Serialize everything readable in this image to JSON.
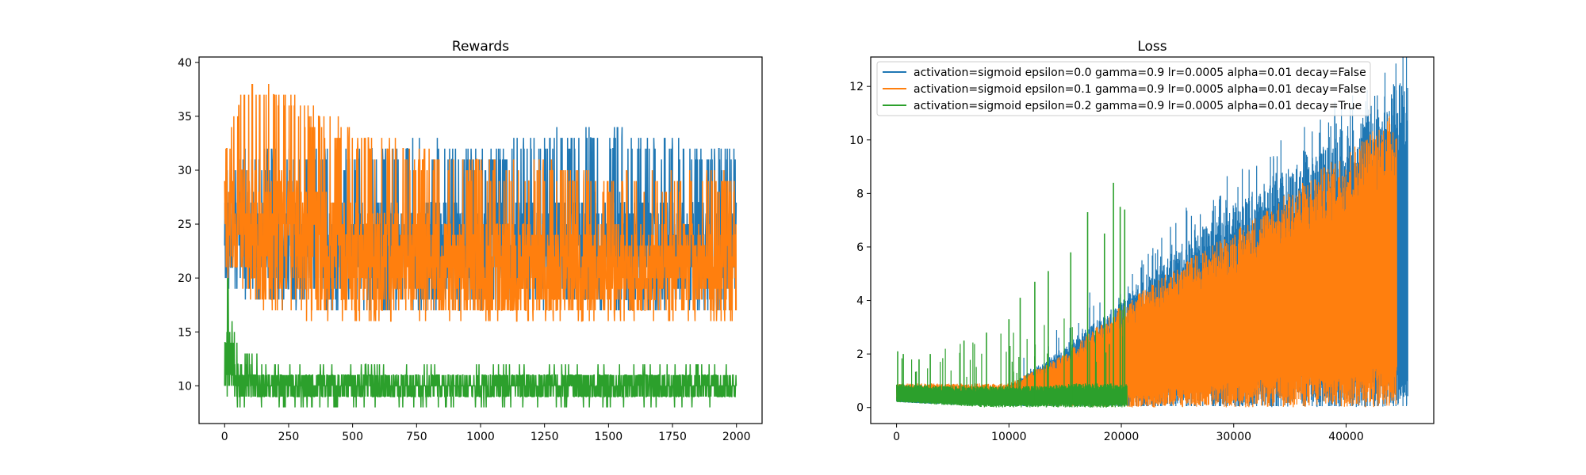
{
  "chart_data": [
    {
      "type": "line",
      "title": "Rewards",
      "xlabel": "",
      "ylabel": "",
      "xlim": [
        -100,
        2100
      ],
      "ylim": [
        6.5,
        40.5
      ],
      "xticks": [
        0,
        250,
        500,
        750,
        1000,
        1250,
        1500,
        1750,
        2000
      ],
      "yticks": [
        10,
        15,
        20,
        25,
        30,
        35,
        40
      ],
      "grid": false,
      "legend": "none",
      "n_points": 2000,
      "series": [
        {
          "color": "#1f77b4",
          "envelope_x": [
            0,
            100,
            250,
            500,
            750,
            1000,
            1250,
            1500,
            1750,
            2000
          ],
          "low": [
            19,
            18,
            17,
            17,
            17,
            17,
            17,
            17,
            17,
            17
          ],
          "high": [
            31,
            32,
            32,
            32,
            33,
            32,
            34,
            34,
            33,
            32
          ],
          "mean": [
            24,
            24,
            23,
            23,
            23,
            23,
            23,
            23,
            23,
            23
          ]
        },
        {
          "color": "#ff7f0e",
          "envelope_x": [
            0,
            100,
            250,
            500,
            750,
            1000,
            1250,
            1500,
            1750,
            2000
          ],
          "low": [
            20,
            18,
            16,
            16,
            16,
            16,
            16,
            16,
            16,
            16
          ],
          "high": [
            33,
            39,
            37,
            34,
            32,
            31,
            31,
            30,
            30,
            30
          ],
          "mean": [
            26,
            25,
            24,
            22,
            22,
            21,
            21,
            21,
            21,
            21
          ]
        },
        {
          "color": "#2ca02c",
          "envelope_x": [
            0,
            50,
            100,
            250,
            500,
            750,
            1000,
            1250,
            1500,
            1750,
            2000
          ],
          "low": [
            9,
            8,
            8,
            8,
            8,
            8,
            8,
            8,
            8,
            8,
            8
          ],
          "high": [
            23,
            15,
            13,
            12,
            12,
            12,
            12,
            12,
            12,
            12,
            12
          ],
          "mean": [
            13,
            10.5,
            10,
            10,
            10,
            10,
            10,
            10,
            10,
            10,
            10
          ]
        }
      ]
    },
    {
      "type": "line",
      "title": "Loss",
      "xlabel": "",
      "ylabel": "",
      "xlim": [
        -2300,
        47800
      ],
      "ylim": [
        -0.6,
        13.1
      ],
      "xticks": [
        0,
        10000,
        20000,
        30000,
        40000
      ],
      "yticks": [
        0,
        2,
        4,
        6,
        8,
        10,
        12
      ],
      "grid": false,
      "legend": "top-left",
      "series": [
        {
          "name": "activation=sigmoid epsilon=0.0 gamma=0.9 lr=0.0005 alpha=0.01 decay=False",
          "color": "#1f77b4",
          "x_end": 45500,
          "envelope_x": [
            0,
            5000,
            10000,
            15000,
            20000,
            25000,
            30000,
            35000,
            40000,
            45500
          ],
          "upper": [
            0.4,
            0.5,
            0.8,
            2.3,
            4.0,
            6.0,
            7.6,
            9.0,
            10.5,
            12.5
          ],
          "lower": [
            0.2,
            0.1,
            0.05,
            0.05,
            0.05,
            0.05,
            0.02,
            0.01,
            0.01,
            0.0
          ]
        },
        {
          "name": "activation=sigmoid epsilon=0.1 gamma=0.9 lr=0.0005 alpha=0.01 decay=False",
          "color": "#ff7f0e",
          "x_end": 44500,
          "envelope_x": [
            0,
            5000,
            10000,
            15000,
            20000,
            25000,
            30000,
            35000,
            40000,
            44500
          ],
          "upper": [
            0.9,
            0.9,
            0.9,
            2.0,
            3.8,
            5.3,
            6.6,
            8.1,
            9.6,
            11.2
          ],
          "lower": [
            0.3,
            0.2,
            0.1,
            0.05,
            0.0,
            0.0,
            0.0,
            0.0,
            0.0,
            0.0
          ]
        },
        {
          "name": "activation=sigmoid epsilon=0.2 gamma=0.9 lr=0.0005 alpha=0.01 decay=True",
          "color": "#2ca02c",
          "x_end": 20500,
          "envelope_x": [
            0,
            4000,
            8000,
            12000,
            16000,
            20500
          ],
          "upper": [
            0.9,
            0.8,
            0.8,
            0.8,
            0.9,
            0.9
          ],
          "lower": [
            0.2,
            0.1,
            0.0,
            0.0,
            0.0,
            0.0
          ],
          "spikes": [
            {
              "x": 100,
              "y": 2.1
            },
            {
              "x": 600,
              "y": 2.0
            },
            {
              "x": 2000,
              "y": 1.8
            },
            {
              "x": 3000,
              "y": 2.0
            },
            {
              "x": 6000,
              "y": 2.5
            },
            {
              "x": 8000,
              "y": 2.8
            },
            {
              "x": 10000,
              "y": 3.3
            },
            {
              "x": 11000,
              "y": 4.1
            },
            {
              "x": 12300,
              "y": 4.7
            },
            {
              "x": 13500,
              "y": 5.1
            },
            {
              "x": 15500,
              "y": 5.8
            },
            {
              "x": 17000,
              "y": 7.3
            },
            {
              "x": 18500,
              "y": 6.5
            },
            {
              "x": 19300,
              "y": 8.4
            },
            {
              "x": 19900,
              "y": 7.5
            },
            {
              "x": 20300,
              "y": 7.4
            }
          ]
        }
      ]
    }
  ]
}
